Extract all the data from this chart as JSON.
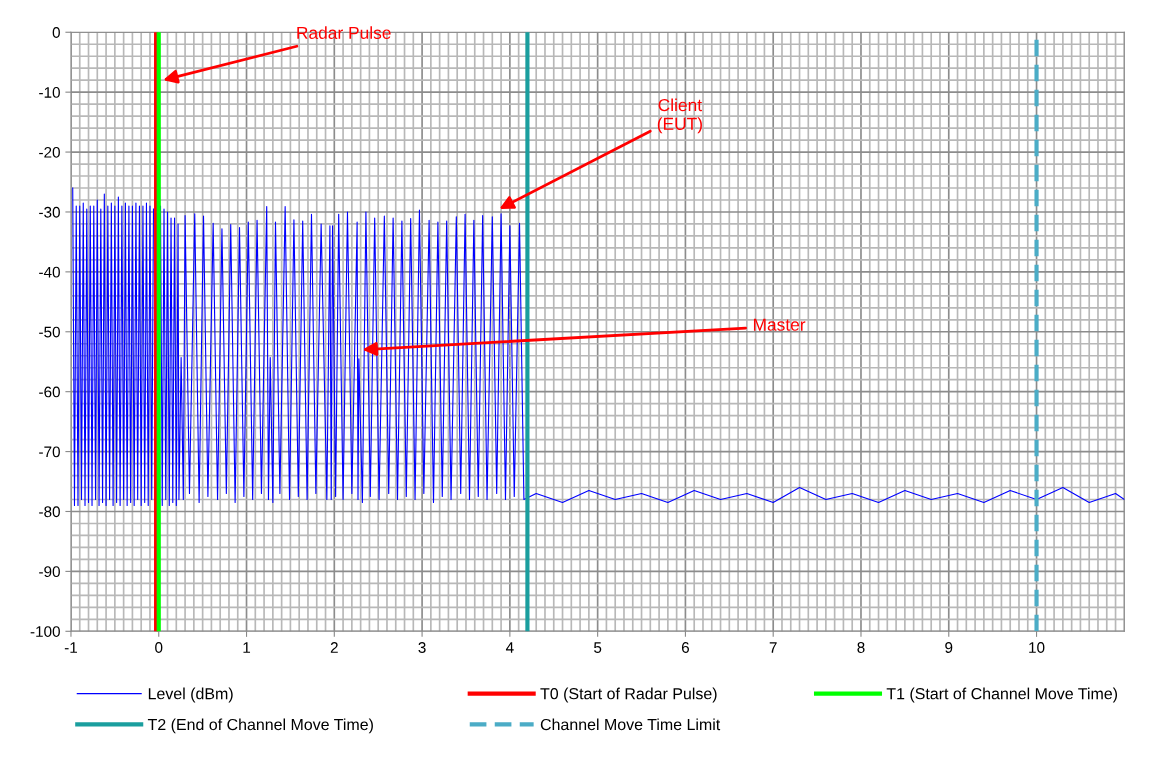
{
  "chart_data": {
    "type": "line",
    "xlim": [
      -1,
      11
    ],
    "xticks": [
      -1,
      0,
      1,
      2,
      3,
      4,
      5,
      6,
      7,
      8,
      9,
      10
    ],
    "ylim": [
      -100,
      0
    ],
    "yticks": [
      -100,
      -90,
      -80,
      -70,
      -60,
      -50,
      -40,
      -30,
      -20,
      -10,
      0
    ],
    "grid": true,
    "legend": "bottom",
    "marker": "none",
    "line_style": "solid",
    "series": [
      {
        "name": "Level (dBm)",
        "color": "#0000ff",
        "x": [
          -0.98,
          -0.96,
          -0.94,
          -0.92,
          -0.9,
          -0.88,
          -0.86,
          -0.84,
          -0.82,
          -0.8,
          -0.78,
          -0.76,
          -0.74,
          -0.72,
          -0.7,
          -0.68,
          -0.66,
          -0.64,
          -0.62,
          -0.6,
          -0.58,
          -0.56,
          -0.54,
          -0.52,
          -0.5,
          -0.48,
          -0.46,
          -0.44,
          -0.42,
          -0.4,
          -0.38,
          -0.36,
          -0.34,
          -0.32,
          -0.3,
          -0.28,
          -0.26,
          -0.24,
          -0.22,
          -0.2,
          -0.18,
          -0.16,
          -0.14,
          -0.12,
          -0.1,
          -0.08,
          -0.06,
          -0.04,
          -0.02,
          0.0,
          0.02,
          0.04,
          0.06,
          0.08,
          0.1,
          0.12,
          0.14,
          0.16,
          0.18,
          0.2,
          0.22,
          0.23,
          0.255,
          0.28,
          0.3,
          0.35,
          0.41,
          0.46,
          0.51,
          0.56,
          0.62,
          0.67,
          0.72,
          0.77,
          0.82,
          0.87,
          0.92,
          0.97,
          1.02,
          1.07,
          1.12,
          1.17,
          1.23,
          1.25,
          1.27,
          1.3,
          1.33,
          1.38,
          1.44,
          1.49,
          1.54,
          1.59,
          1.64,
          1.69,
          1.74,
          1.79,
          1.85,
          1.915,
          1.95,
          1.965,
          1.98,
          2.015,
          2.05,
          2.1,
          2.15,
          2.2,
          2.26,
          2.27,
          2.28,
          2.32,
          2.36,
          2.41,
          2.46,
          2.51,
          2.57,
          2.62,
          2.67,
          2.72,
          2.77,
          2.82,
          2.87,
          2.92,
          2.97,
          3.02,
          3.08,
          3.13,
          3.18,
          3.23,
          3.28,
          3.33,
          3.39,
          3.44,
          3.49,
          3.54,
          3.59,
          3.64,
          3.69,
          3.74,
          3.8,
          3.85,
          3.9,
          3.95,
          4.0,
          4.05,
          4.11,
          4.16,
          4.3,
          4.6,
          4.9,
          5.2,
          5.5,
          5.8,
          6.1,
          6.4,
          6.7,
          7.0,
          7.3,
          7.6,
          7.9,
          8.2,
          8.5,
          8.8,
          9.1,
          9.4,
          9.7,
          10.0,
          10.3,
          10.6,
          10.9,
          11.0
        ],
        "values": [
          -26,
          -79,
          -29,
          -79,
          -29,
          -78,
          -28.5,
          -79,
          -29.5,
          -78.5,
          -29,
          -79,
          -29,
          -78,
          -28,
          -79,
          -29.5,
          -78.5,
          -27,
          -79,
          -29,
          -78,
          -28.5,
          -79,
          -29,
          -78.5,
          -27.5,
          -79,
          -29,
          -78,
          -28.5,
          -79,
          -29,
          -78.5,
          -29,
          -79,
          -28.5,
          -78,
          -29,
          -79,
          -29,
          -78.5,
          -28.5,
          -79,
          -29,
          -78,
          -29.5,
          null,
          -29,
          -78.5,
          -29,
          -79,
          -29.5,
          -78,
          -30,
          -79,
          -31,
          -78.5,
          -31,
          -79,
          -32,
          -78,
          -54.3,
          -78,
          -30.6,
          -77,
          -30.3,
          -78.5,
          -30.7,
          -77.5,
          -31.9,
          -78,
          -32.8,
          -77,
          -32.1,
          -78.5,
          -32.6,
          -77.5,
          -31.7,
          -78,
          -31.4,
          -77,
          -29.1,
          -78,
          -54.3,
          -78.5,
          -31.7,
          -77,
          -29.1,
          -78,
          -31.3,
          -77.5,
          -31.5,
          -78,
          -30.4,
          -77,
          -32.0,
          -78,
          -32.3,
          -78,
          -32.3,
          -77.5,
          -30.4,
          -78,
          -30.0,
          -77,
          -31.7,
          -78,
          -54.5,
          -78.5,
          -30.0,
          -77.5,
          -31.0,
          -78,
          -30.7,
          -77,
          -31.0,
          -78,
          -31.5,
          -77.5,
          -31.1,
          -78,
          -29.7,
          -77,
          -31.4,
          -78.5,
          -31.7,
          -77.5,
          -31.5,
          -78,
          -30.8,
          -77,
          -30.4,
          -78,
          -31.4,
          -77.5,
          -30.6,
          -78,
          -30.8,
          -77,
          -30.3,
          -78,
          -32.3,
          -77.5,
          -31.9,
          -78,
          -77,
          -78.5,
          -76.5,
          -78,
          -77,
          -78.5,
          -76.5,
          -78,
          -77,
          -78.5,
          -76,
          -78,
          -77,
          -78.5,
          -76.5,
          -78,
          -77,
          -78.5,
          -76.5,
          -78,
          -76,
          -78.5,
          -77,
          -78
        ]
      }
    ],
    "ref_lines": [
      {
        "axis": "x",
        "value": -0.03,
        "label": "T0 (Start of Radar Pulse)",
        "color": "#ff0000",
        "line_style": "solid"
      },
      {
        "axis": "x",
        "value": 0,
        "label": "T1 (Start of Channel Move Time)",
        "color": "#00ff00",
        "line_style": "solid"
      },
      {
        "axis": "x",
        "value": 4.2,
        "label": "T2 (End of Channel Move Time)",
        "color": "#1a9e9e",
        "line_style": "solid"
      },
      {
        "axis": "x",
        "value": 10,
        "label": "Channel Move Time Limit",
        "color": "#4bacc6",
        "line_style": "dashed"
      }
    ],
    "annotations": [
      {
        "text": "Radar Pulse",
        "x": 0.05,
        "y": -8
      },
      {
        "text": "Client\n(EUT)",
        "x": 3.88,
        "y": -29.5
      },
      {
        "text": "Master",
        "x": 2.32,
        "y": -53
      }
    ]
  }
}
